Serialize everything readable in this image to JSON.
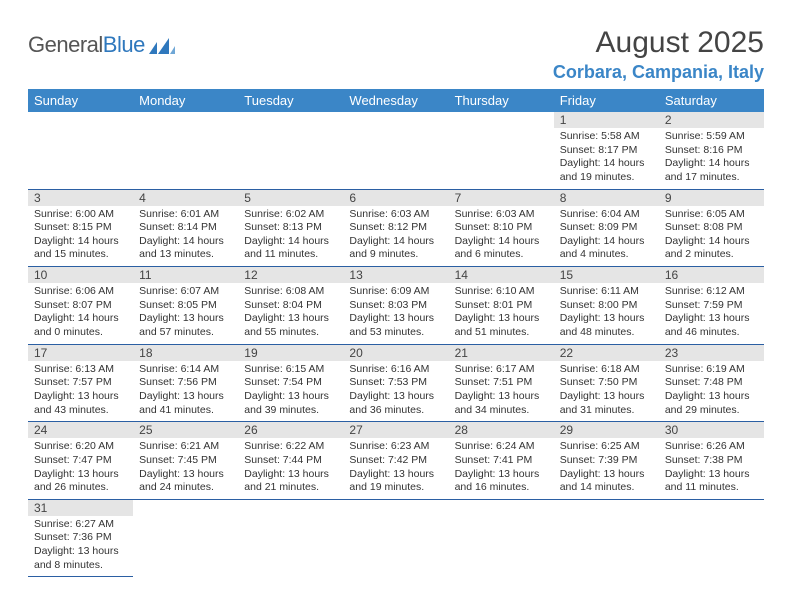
{
  "brand": {
    "general": "General",
    "blue": "Blue"
  },
  "title": "August 2025",
  "location": "Corbara, Campania, Italy",
  "colors": {
    "header_bg": "#3b86c7",
    "header_text": "#ffffff",
    "daynum_bg": "#e5e5e5",
    "row_divider": "#2b5fa3",
    "location_text": "#3b86c7",
    "logo_blue": "#2f78bd"
  },
  "day_headers": [
    "Sunday",
    "Monday",
    "Tuesday",
    "Wednesday",
    "Thursday",
    "Friday",
    "Saturday"
  ],
  "layout": {
    "columns": 7,
    "rows": 6,
    "header_font_size": 13,
    "daynum_font_size": 12,
    "body_font_size": 10.5,
    "title_font_size": 30,
    "location_font_size": 18
  },
  "weeks": [
    [
      null,
      null,
      null,
      null,
      null,
      {
        "n": "1",
        "sunrise": "5:58 AM",
        "sunset": "8:17 PM",
        "daylight": "14 hours and 19 minutes."
      },
      {
        "n": "2",
        "sunrise": "5:59 AM",
        "sunset": "8:16 PM",
        "daylight": "14 hours and 17 minutes."
      }
    ],
    [
      {
        "n": "3",
        "sunrise": "6:00 AM",
        "sunset": "8:15 PM",
        "daylight": "14 hours and 15 minutes."
      },
      {
        "n": "4",
        "sunrise": "6:01 AM",
        "sunset": "8:14 PM",
        "daylight": "14 hours and 13 minutes."
      },
      {
        "n": "5",
        "sunrise": "6:02 AM",
        "sunset": "8:13 PM",
        "daylight": "14 hours and 11 minutes."
      },
      {
        "n": "6",
        "sunrise": "6:03 AM",
        "sunset": "8:12 PM",
        "daylight": "14 hours and 9 minutes."
      },
      {
        "n": "7",
        "sunrise": "6:03 AM",
        "sunset": "8:10 PM",
        "daylight": "14 hours and 6 minutes."
      },
      {
        "n": "8",
        "sunrise": "6:04 AM",
        "sunset": "8:09 PM",
        "daylight": "14 hours and 4 minutes."
      },
      {
        "n": "9",
        "sunrise": "6:05 AM",
        "sunset": "8:08 PM",
        "daylight": "14 hours and 2 minutes."
      }
    ],
    [
      {
        "n": "10",
        "sunrise": "6:06 AM",
        "sunset": "8:07 PM",
        "daylight": "14 hours and 0 minutes."
      },
      {
        "n": "11",
        "sunrise": "6:07 AM",
        "sunset": "8:05 PM",
        "daylight": "13 hours and 57 minutes."
      },
      {
        "n": "12",
        "sunrise": "6:08 AM",
        "sunset": "8:04 PM",
        "daylight": "13 hours and 55 minutes."
      },
      {
        "n": "13",
        "sunrise": "6:09 AM",
        "sunset": "8:03 PM",
        "daylight": "13 hours and 53 minutes."
      },
      {
        "n": "14",
        "sunrise": "6:10 AM",
        "sunset": "8:01 PM",
        "daylight": "13 hours and 51 minutes."
      },
      {
        "n": "15",
        "sunrise": "6:11 AM",
        "sunset": "8:00 PM",
        "daylight": "13 hours and 48 minutes."
      },
      {
        "n": "16",
        "sunrise": "6:12 AM",
        "sunset": "7:59 PM",
        "daylight": "13 hours and 46 minutes."
      }
    ],
    [
      {
        "n": "17",
        "sunrise": "6:13 AM",
        "sunset": "7:57 PM",
        "daylight": "13 hours and 43 minutes."
      },
      {
        "n": "18",
        "sunrise": "6:14 AM",
        "sunset": "7:56 PM",
        "daylight": "13 hours and 41 minutes."
      },
      {
        "n": "19",
        "sunrise": "6:15 AM",
        "sunset": "7:54 PM",
        "daylight": "13 hours and 39 minutes."
      },
      {
        "n": "20",
        "sunrise": "6:16 AM",
        "sunset": "7:53 PM",
        "daylight": "13 hours and 36 minutes."
      },
      {
        "n": "21",
        "sunrise": "6:17 AM",
        "sunset": "7:51 PM",
        "daylight": "13 hours and 34 minutes."
      },
      {
        "n": "22",
        "sunrise": "6:18 AM",
        "sunset": "7:50 PM",
        "daylight": "13 hours and 31 minutes."
      },
      {
        "n": "23",
        "sunrise": "6:19 AM",
        "sunset": "7:48 PM",
        "daylight": "13 hours and 29 minutes."
      }
    ],
    [
      {
        "n": "24",
        "sunrise": "6:20 AM",
        "sunset": "7:47 PM",
        "daylight": "13 hours and 26 minutes."
      },
      {
        "n": "25",
        "sunrise": "6:21 AM",
        "sunset": "7:45 PM",
        "daylight": "13 hours and 24 minutes."
      },
      {
        "n": "26",
        "sunrise": "6:22 AM",
        "sunset": "7:44 PM",
        "daylight": "13 hours and 21 minutes."
      },
      {
        "n": "27",
        "sunrise": "6:23 AM",
        "sunset": "7:42 PM",
        "daylight": "13 hours and 19 minutes."
      },
      {
        "n": "28",
        "sunrise": "6:24 AM",
        "sunset": "7:41 PM",
        "daylight": "13 hours and 16 minutes."
      },
      {
        "n": "29",
        "sunrise": "6:25 AM",
        "sunset": "7:39 PM",
        "daylight": "13 hours and 14 minutes."
      },
      {
        "n": "30",
        "sunrise": "6:26 AM",
        "sunset": "7:38 PM",
        "daylight": "13 hours and 11 minutes."
      }
    ],
    [
      {
        "n": "31",
        "sunrise": "6:27 AM",
        "sunset": "7:36 PM",
        "daylight": "13 hours and 8 minutes."
      },
      null,
      null,
      null,
      null,
      null,
      null
    ]
  ]
}
